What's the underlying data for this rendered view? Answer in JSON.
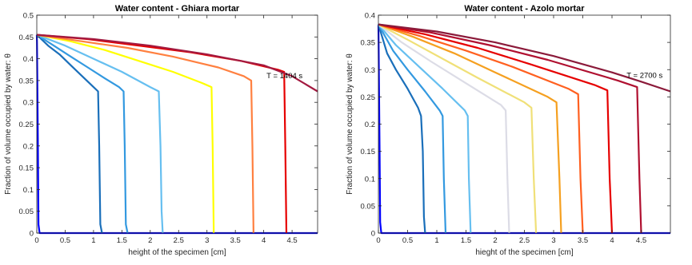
{
  "chart_data": [
    {
      "type": "line",
      "title": "Water content - Ghiara mortar",
      "xlabel": "height of the specimen [cm]",
      "ylabel": "Fraction of volume occupied by water: θ",
      "xlim": [
        0,
        4.95
      ],
      "ylim": [
        0,
        0.5
      ],
      "xticks": [
        "0",
        "0.5",
        "1",
        "1.5",
        "2",
        "2.5",
        "3",
        "3.5",
        "4",
        "4.5"
      ],
      "yticks": [
        "0",
        "0.05",
        "0.1",
        "0.15",
        "0.2",
        "0.25",
        "0.3",
        "0.35",
        "0.4",
        "0.45",
        "0.5"
      ],
      "annotation": "T = 1404 s",
      "grid": false,
      "series": [
        {
          "color": "#0000ff",
          "x": [
            0,
            0.003,
            0.02,
            0.03,
            0.05,
            4.95
          ],
          "y": [
            0.455,
            0.44,
            0.2,
            0.02,
            0,
            0
          ]
        },
        {
          "color": "#1a6fba",
          "x": [
            0,
            0.2,
            0.4,
            0.6,
            0.8,
            1.0,
            1.08,
            1.1,
            1.12,
            1.15
          ],
          "y": [
            0.455,
            0.43,
            0.41,
            0.385,
            0.36,
            0.335,
            0.325,
            0.2,
            0.02,
            0
          ]
        },
        {
          "color": "#3399e0",
          "x": [
            0,
            0.3,
            0.6,
            0.9,
            1.2,
            1.45,
            1.53,
            1.55,
            1.57,
            1.6
          ],
          "y": [
            0.455,
            0.43,
            0.405,
            0.38,
            0.355,
            0.335,
            0.325,
            0.2,
            0.02,
            0
          ]
        },
        {
          "color": "#66bff0",
          "x": [
            0,
            0.5,
            1.0,
            1.5,
            2.0,
            2.15,
            2.18,
            2.2,
            2.22
          ],
          "y": [
            0.455,
            0.43,
            0.4,
            0.37,
            0.335,
            0.325,
            0.2,
            0.05,
            0
          ]
        },
        {
          "color": "#ffff00",
          "x": [
            0,
            0.6,
            1.2,
            1.8,
            2.4,
            2.9,
            3.08,
            3.1,
            3.12
          ],
          "y": [
            0.455,
            0.44,
            0.42,
            0.395,
            0.37,
            0.345,
            0.335,
            0.2,
            0
          ]
        },
        {
          "color": "#ff8040",
          "x": [
            0,
            0.8,
            1.6,
            2.4,
            3.2,
            3.65,
            3.78,
            3.8,
            3.82
          ],
          "y": [
            0.455,
            0.44,
            0.425,
            0.405,
            0.38,
            0.36,
            0.35,
            0.2,
            0
          ]
        },
        {
          "color": "#e60000",
          "x": [
            0,
            0.9,
            1.8,
            2.7,
            3.6,
            4.25,
            4.36,
            4.38,
            4.4
          ],
          "y": [
            0.455,
            0.445,
            0.43,
            0.415,
            0.395,
            0.375,
            0.37,
            0.2,
            0
          ]
        },
        {
          "color": "#a31a40",
          "x": [
            0,
            1.0,
            2.0,
            3.0,
            4.0,
            4.5,
            4.95
          ],
          "y": [
            0.455,
            0.445,
            0.43,
            0.41,
            0.385,
            0.36,
            0.325
          ]
        }
      ]
    },
    {
      "type": "line",
      "title": "Water content - Azolo mortar",
      "xlabel": "hieght of the specimen [cm]",
      "ylabel": "Fraction of volume occupied by water: θ",
      "xlim": [
        0,
        5
      ],
      "ylim": [
        0,
        0.4
      ],
      "xticks": [
        "0",
        "0.5",
        "1",
        "1.5",
        "2",
        "2.5",
        "3",
        "3.5",
        "4",
        "4.5"
      ],
      "yticks": [
        "0",
        "0.05",
        "0.1",
        "0.15",
        "0.2",
        "0.25",
        "0.3",
        "0.35",
        "0.4"
      ],
      "annotation": "T = 2700 s",
      "grid": false,
      "series": [
        {
          "color": "#0000ff",
          "x": [
            0,
            0.003,
            0.02,
            0.03,
            0.05,
            5.0
          ],
          "y": [
            0.383,
            0.36,
            0.15,
            0.02,
            0,
            0
          ]
        },
        {
          "color": "#1a6fba",
          "x": [
            0,
            0.15,
            0.3,
            0.5,
            0.68,
            0.73,
            0.76,
            0.78,
            0.8
          ],
          "y": [
            0.383,
            0.33,
            0.3,
            0.265,
            0.23,
            0.215,
            0.15,
            0.03,
            0
          ]
        },
        {
          "color": "#3399e0",
          "x": [
            0,
            0.25,
            0.5,
            0.8,
            1.05,
            1.1,
            1.12,
            1.15
          ],
          "y": [
            0.383,
            0.335,
            0.3,
            0.26,
            0.225,
            0.215,
            0.1,
            0
          ]
        },
        {
          "color": "#66bff0",
          "x": [
            0,
            0.3,
            0.7,
            1.1,
            1.48,
            1.53,
            1.55,
            1.58
          ],
          "y": [
            0.383,
            0.345,
            0.305,
            0.265,
            0.225,
            0.215,
            0.1,
            0
          ]
        },
        {
          "color": "#dcdce6",
          "x": [
            0,
            0.4,
            0.9,
            1.5,
            2.1,
            2.18,
            2.21,
            2.24
          ],
          "y": [
            0.383,
            0.35,
            0.315,
            0.275,
            0.235,
            0.225,
            0.1,
            0
          ]
        },
        {
          "color": "#f0e078",
          "x": [
            0,
            0.5,
            1.1,
            1.7,
            2.5,
            2.62,
            2.66,
            2.7
          ],
          "y": [
            0.383,
            0.355,
            0.32,
            0.285,
            0.24,
            0.23,
            0.1,
            0
          ]
        },
        {
          "color": "#f5a020",
          "x": [
            0,
            0.6,
            1.3,
            2.0,
            2.9,
            3.05,
            3.1,
            3.13
          ],
          "y": [
            0.383,
            0.36,
            0.33,
            0.295,
            0.25,
            0.24,
            0.1,
            0
          ]
        },
        {
          "color": "#ff6020",
          "x": [
            0,
            0.7,
            1.5,
            2.3,
            3.25,
            3.42,
            3.46,
            3.5
          ],
          "y": [
            0.383,
            0.362,
            0.335,
            0.305,
            0.265,
            0.255,
            0.1,
            0
          ]
        },
        {
          "color": "#e60000",
          "x": [
            0,
            0.8,
            1.7,
            2.6,
            3.7,
            3.92,
            3.96,
            4.0
          ],
          "y": [
            0.383,
            0.365,
            0.34,
            0.31,
            0.272,
            0.262,
            0.1,
            0
          ]
        },
        {
          "color": "#b01030",
          "x": [
            0,
            0.9,
            1.9,
            2.9,
            4.1,
            4.43,
            4.47,
            4.5
          ],
          "y": [
            0.383,
            0.368,
            0.345,
            0.318,
            0.28,
            0.268,
            0.1,
            0
          ]
        },
        {
          "color": "#8b1a3a",
          "x": [
            0,
            1.0,
            2.0,
            3.0,
            4.0,
            4.5,
            5.0
          ],
          "y": [
            0.383,
            0.37,
            0.35,
            0.325,
            0.295,
            0.278,
            0.26
          ]
        }
      ]
    }
  ]
}
